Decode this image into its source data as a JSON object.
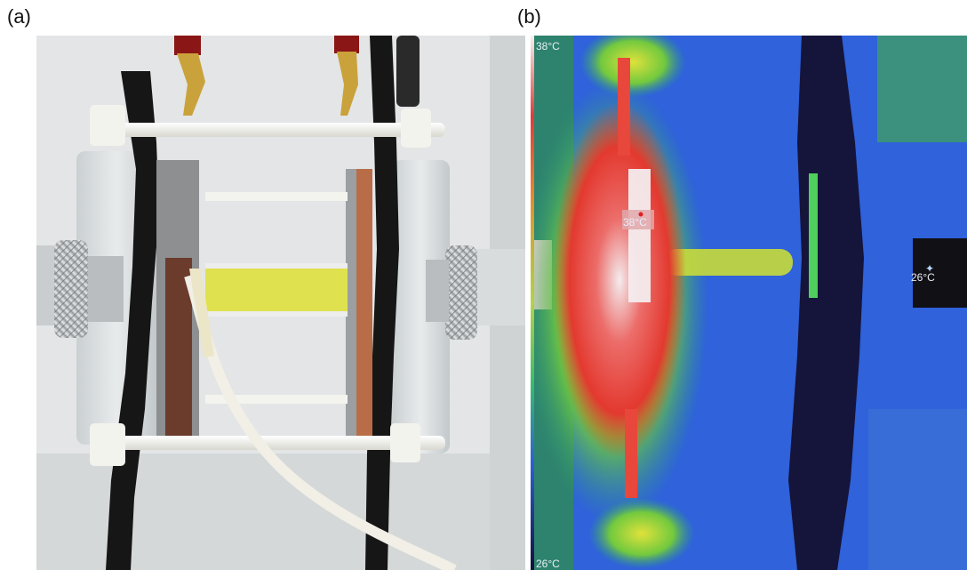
{
  "panels": {
    "a": {
      "label": "(a)"
    },
    "b": {
      "label": "(b)",
      "scale_max": "38°C",
      "scale_min": "26°C",
      "spot_hot": "38°C",
      "spot_cold": "26°C"
    }
  },
  "colors": {
    "thermal_background": "#2d5fd9",
    "hot_core": "#f2e9ea",
    "hot_zone": "#e84a3a",
    "warm_zone": "#e6e23a",
    "cold_zone": "#15143a",
    "electrolyte_yellow": "#dfe24e",
    "frame_black": "#1a1a1a"
  }
}
